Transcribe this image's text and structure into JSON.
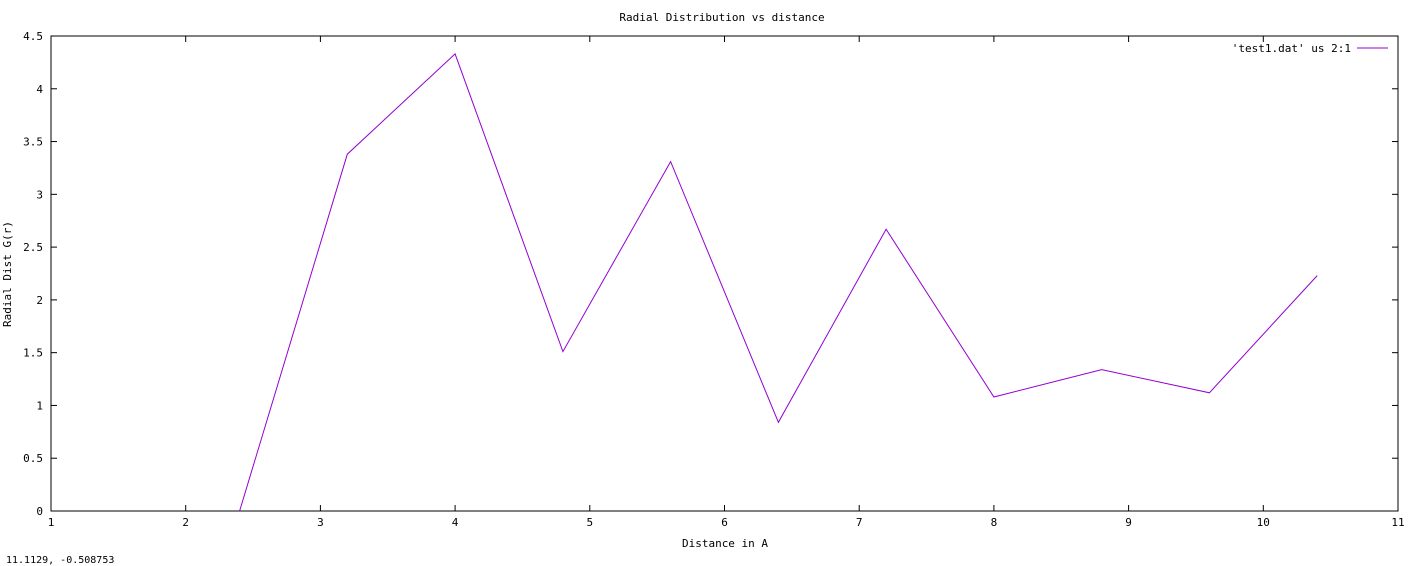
{
  "coordinate_readout": "11.1129, -0.508753",
  "chart_data": {
    "type": "line",
    "title": "Radial Distribution vs distance",
    "xlabel": "Distance in A",
    "ylabel": "Radial Dist G(r)",
    "xlim": [
      1,
      11
    ],
    "ylim": [
      0,
      4.5
    ],
    "x_ticks": [
      1,
      2,
      3,
      4,
      5,
      6,
      7,
      8,
      9,
      10,
      11
    ],
    "x_tick_labels": [
      "1",
      "2",
      "3",
      "4",
      "5",
      "6",
      "7",
      "8",
      "9",
      "10",
      "11"
    ],
    "y_ticks": [
      0,
      0.5,
      1,
      1.5,
      2,
      2.5,
      3,
      3.5,
      4,
      4.5
    ],
    "y_tick_labels": [
      "0",
      "0.5",
      "1",
      "1.5",
      "2",
      "2.5",
      "3",
      "3.5",
      "4",
      "4.5"
    ],
    "grid": false,
    "legend_position": "top-right",
    "series": [
      {
        "name": "'test1.dat' us 2:1",
        "color": "#9400d3",
        "x": [
          2.4,
          3.2,
          4.0,
          4.8,
          5.6,
          6.4,
          7.2,
          8.0,
          8.8,
          9.6,
          10.4
        ],
        "y": [
          0.0,
          3.38,
          4.33,
          1.51,
          3.31,
          0.84,
          2.67,
          1.08,
          1.34,
          1.12,
          2.23
        ]
      }
    ]
  }
}
